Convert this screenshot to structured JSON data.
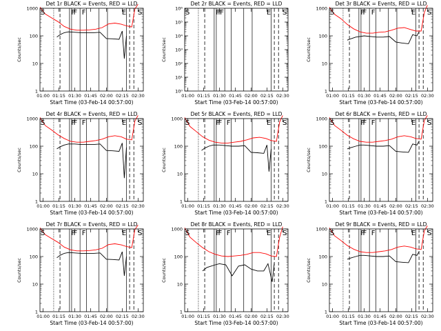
{
  "chart_data": [
    {
      "type": "line",
      "title": "Det 1r BLACK = Events, RED = LLD",
      "xlabel": "Start Time (03-Feb-14 00:57:00)",
      "ylabel": "Counts/sec",
      "y_scale": "log",
      "ylim": [
        1,
        1000
      ],
      "xlim": [
        "00:57",
        "02:35"
      ],
      "x_tick_labels": [
        "01:00",
        "01:15",
        "01:30",
        "01:45",
        "02:00",
        "02:15",
        "02:30"
      ],
      "y_tick_labels": [
        "1",
        "10",
        "100",
        "1000"
      ],
      "markers": [
        "S",
        "F",
        "F",
        "F",
        "E",
        "S"
      ],
      "series": [
        {
          "color": "#ff0000",
          "x": [
            "00:57",
            "01:02",
            "01:08",
            "01:14",
            "01:20",
            "01:26",
            "01:32",
            "01:38",
            "01:44",
            "01:50",
            "01:56",
            "02:02",
            "02:08",
            "02:14",
            "02:19",
            "02:24",
            "02:27",
            "02:30"
          ],
          "y": [
            1100,
            620,
            450,
            330,
            220,
            175,
            160,
            160,
            165,
            175,
            200,
            270,
            290,
            265,
            230,
            210,
            950,
            1400
          ]
        },
        {
          "color": "#000000",
          "x": [
            "01:13",
            "01:16",
            "01:20",
            "01:24",
            "01:30",
            "01:36",
            "01:42",
            "01:48",
            "01:54",
            "02:00",
            "02:06",
            "02:12",
            "02:15",
            "02:17",
            "02:19"
          ],
          "y": [
            90,
            110,
            130,
            140,
            135,
            130,
            130,
            130,
            135,
            80,
            78,
            75,
            150,
            15,
            100
          ]
        }
      ]
    },
    {
      "type": "line",
      "title": "Det 2r BLACK = Events, RED = LLD",
      "xlabel": "Start Time (03-Feb-14 00:57:00)",
      "ylabel": "Counts/sec",
      "y_scale": "log",
      "ylim": [
        1,
        1000000
      ],
      "xlim": [
        "00:57",
        "02:35"
      ],
      "x_tick_labels": [
        "01:00",
        "01:15",
        "01:30",
        "01:45",
        "02:00",
        "02:15",
        "02:30"
      ],
      "y_tick_labels": [
        "10⁰",
        "10¹",
        "10²",
        "10³",
        "10⁴",
        "10⁵",
        "10⁶"
      ],
      "markers": [
        "S",
        "FF",
        "F",
        "E",
        "S"
      ],
      "series": []
    },
    {
      "type": "line",
      "title": "Det 3r BLACK = Events, RED = LLD",
      "xlabel": "Start Time (03-Feb-14 00:57:00)",
      "ylabel": "Counts/sec",
      "y_scale": "log",
      "ylim": [
        1,
        1000
      ],
      "xlim": [
        "00:57",
        "02:35"
      ],
      "x_tick_labels": [
        "01:00",
        "01:15",
        "01:30",
        "01:45",
        "02:00",
        "02:15",
        "02:30"
      ],
      "y_tick_labels": [
        "1",
        "10",
        "100",
        "1000"
      ],
      "markers": [
        "S",
        "F",
        "F",
        "F",
        "E",
        "S"
      ],
      "series": [
        {
          "color": "#ff0000",
          "x": [
            "00:57",
            "01:02",
            "01:08",
            "01:14",
            "01:20",
            "01:26",
            "01:32",
            "01:38",
            "01:44",
            "01:50",
            "01:56",
            "02:02",
            "02:08",
            "02:14",
            "02:19",
            "02:24",
            "02:27",
            "02:30"
          ],
          "y": [
            1100,
            600,
            420,
            260,
            180,
            140,
            125,
            125,
            135,
            140,
            160,
            190,
            200,
            170,
            150,
            150,
            700,
            1300
          ]
        },
        {
          "color": "#000000",
          "x": [
            "01:14",
            "01:18",
            "01:22",
            "01:26",
            "01:30",
            "01:36",
            "01:42",
            "01:48",
            "01:54",
            "02:00",
            "02:06",
            "02:12",
            "02:16",
            "02:20",
            "02:22"
          ],
          "y": [
            70,
            80,
            90,
            95,
            100,
            95,
            90,
            90,
            95,
            60,
            55,
            52,
            110,
            100,
            140
          ]
        }
      ]
    },
    {
      "type": "line",
      "title": "Det 4r BLACK = Events, RED = LLD",
      "xlabel": "Start Time (03-Feb-14 00:57:00)",
      "ylabel": "Counts/sec",
      "y_scale": "log",
      "ylim": [
        1,
        1000
      ],
      "xlim": [
        "00:57",
        "02:35"
      ],
      "x_tick_labels": [
        "01:00",
        "01:15",
        "01:30",
        "01:45",
        "02:00",
        "02:15",
        "02:30"
      ],
      "y_tick_labels": [
        "1",
        "10",
        "100",
        "1000"
      ],
      "markers": [
        "S",
        "F",
        "F",
        "F",
        "E",
        "S"
      ],
      "series": [
        {
          "color": "#ff0000",
          "x": [
            "00:57",
            "01:02",
            "01:08",
            "01:14",
            "01:20",
            "01:26",
            "01:32",
            "01:38",
            "01:44",
            "01:50",
            "01:56",
            "02:02",
            "02:08",
            "02:14",
            "02:19",
            "02:24",
            "02:27",
            "02:30"
          ],
          "y": [
            1100,
            560,
            390,
            260,
            190,
            150,
            140,
            140,
            150,
            160,
            180,
            220,
            240,
            220,
            180,
            170,
            820,
            1300
          ]
        },
        {
          "color": "#000000",
          "x": [
            "01:13",
            "01:16",
            "01:20",
            "01:24",
            "01:30",
            "01:36",
            "01:42",
            "01:48",
            "01:54",
            "02:00",
            "02:06",
            "02:12",
            "02:15",
            "02:17",
            "02:19"
          ],
          "y": [
            80,
            95,
            110,
            120,
            120,
            115,
            115,
            115,
            120,
            70,
            68,
            65,
            130,
            7,
            90
          ]
        }
      ]
    },
    {
      "type": "line",
      "title": "Det 5r BLACK = Events, RED = LLD",
      "xlabel": "Start Time (03-Feb-14 00:57:00)",
      "ylabel": "Counts/sec",
      "y_scale": "log",
      "ylim": [
        1,
        1000
      ],
      "xlim": [
        "00:57",
        "02:35"
      ],
      "x_tick_labels": [
        "01:00",
        "01:15",
        "01:30",
        "01:45",
        "02:00",
        "02:15",
        "02:30"
      ],
      "y_tick_labels": [
        "1",
        "10",
        "100",
        "1000"
      ],
      "markers": [
        "S",
        "F",
        "F",
        "F",
        "E",
        "S"
      ],
      "series": [
        {
          "color": "#ff0000",
          "x": [
            "00:57",
            "01:02",
            "01:08",
            "01:14",
            "01:20",
            "01:26",
            "01:32",
            "01:38",
            "01:44",
            "01:50",
            "01:56",
            "02:02",
            "02:08",
            "02:14",
            "02:19",
            "02:24",
            "02:27",
            "02:30"
          ],
          "y": [
            1100,
            520,
            340,
            220,
            165,
            140,
            130,
            130,
            140,
            150,
            170,
            200,
            210,
            190,
            160,
            150,
            750,
            1300
          ]
        },
        {
          "color": "#000000",
          "x": [
            "01:13",
            "01:16",
            "01:20",
            "01:24",
            "01:30",
            "01:36",
            "01:42",
            "01:48",
            "01:54",
            "02:00",
            "02:06",
            "02:12",
            "02:15",
            "02:17",
            "02:19"
          ],
          "y": [
            70,
            85,
            100,
            110,
            110,
            105,
            100,
            100,
            105,
            60,
            58,
            55,
            110,
            12,
            80
          ]
        }
      ]
    },
    {
      "type": "line",
      "title": "Det 6r BLACK = Events, RED = LLD",
      "xlabel": "Start Time (03-Feb-14 00:57:00)",
      "ylabel": "Counts/sec",
      "y_scale": "log",
      "ylim": [
        1,
        1000
      ],
      "xlim": [
        "00:57",
        "02:35"
      ],
      "x_tick_labels": [
        "01:00",
        "01:15",
        "01:30",
        "01:45",
        "02:00",
        "02:15",
        "02:30"
      ],
      "y_tick_labels": [
        "1",
        "10",
        "100",
        "1000"
      ],
      "markers": [
        "S",
        "F",
        "F",
        "F",
        "E",
        "S"
      ],
      "series": [
        {
          "color": "#ff0000",
          "x": [
            "00:57",
            "01:02",
            "01:08",
            "01:14",
            "01:20",
            "01:26",
            "01:32",
            "01:38",
            "01:44",
            "01:50",
            "01:56",
            "02:02",
            "02:08",
            "02:14",
            "02:19",
            "02:24",
            "02:27",
            "02:30"
          ],
          "y": [
            1100,
            560,
            380,
            250,
            185,
            150,
            140,
            140,
            150,
            160,
            180,
            220,
            240,
            220,
            190,
            180,
            850,
            1300
          ]
        },
        {
          "color": "#000000",
          "x": [
            "01:14",
            "01:18",
            "01:22",
            "01:26",
            "01:30",
            "01:36",
            "01:42",
            "01:48",
            "01:54",
            "02:00",
            "02:06",
            "02:12",
            "02:16",
            "02:20",
            "02:22"
          ],
          "y": [
            80,
            90,
            100,
            110,
            110,
            105,
            100,
            100,
            105,
            65,
            62,
            60,
            120,
            110,
            150
          ]
        }
      ]
    },
    {
      "type": "line",
      "title": "Det 7r BLACK = Events, RED = LLD",
      "xlabel": "Start Time (03-Feb-14 00:57:00)",
      "ylabel": "Counts/sec",
      "y_scale": "log",
      "ylim": [
        1,
        1000
      ],
      "xlim": [
        "00:57",
        "02:35"
      ],
      "x_tick_labels": [
        "01:00",
        "01:15",
        "01:30",
        "01:45",
        "02:00",
        "02:15",
        "02:30"
      ],
      "y_tick_labels": [
        "1",
        "10",
        "100",
        "1000"
      ],
      "markers": [
        "S",
        "F",
        "F",
        "F",
        "E",
        "S"
      ],
      "series": [
        {
          "color": "#ff0000",
          "x": [
            "00:57",
            "01:02",
            "01:08",
            "01:14",
            "01:20",
            "01:26",
            "01:32",
            "01:38",
            "01:44",
            "01:50",
            "01:56",
            "02:02",
            "02:08",
            "02:14",
            "02:19",
            "02:24",
            "02:27",
            "02:30"
          ],
          "y": [
            1100,
            620,
            450,
            330,
            220,
            175,
            160,
            160,
            165,
            175,
            200,
            270,
            290,
            265,
            230,
            210,
            950,
            1400
          ]
        },
        {
          "color": "#000000",
          "x": [
            "01:13",
            "01:16",
            "01:20",
            "01:24",
            "01:30",
            "01:36",
            "01:42",
            "01:48",
            "01:54",
            "02:00",
            "02:06",
            "02:12",
            "02:15",
            "02:17",
            "02:19"
          ],
          "y": [
            90,
            110,
            130,
            140,
            135,
            130,
            130,
            130,
            135,
            80,
            78,
            75,
            150,
            20,
            100
          ]
        }
      ]
    },
    {
      "type": "line",
      "title": "Det 8r BLACK = Events, RED = LLD",
      "xlabel": "Start Time (03-Feb-14 00:57:00)",
      "ylabel": "Counts/sec",
      "y_scale": "log",
      "ylim": [
        1,
        1000
      ],
      "xlim": [
        "00:57",
        "02:35"
      ],
      "x_tick_labels": [
        "01:00",
        "01:15",
        "01:30",
        "01:45",
        "02:00",
        "02:15",
        "02:30"
      ],
      "y_tick_labels": [
        "1",
        "10",
        "100",
        "1000"
      ],
      "markers": [
        "S",
        "F",
        "F",
        "F",
        "E",
        "S"
      ],
      "series": [
        {
          "color": "#ff0000",
          "x": [
            "00:57",
            "01:02",
            "01:08",
            "01:14",
            "01:20",
            "01:26",
            "01:32",
            "01:38",
            "01:44",
            "01:50",
            "01:56",
            "02:02",
            "02:08",
            "02:14",
            "02:19",
            "02:24",
            "02:27",
            "02:30"
          ],
          "y": [
            1100,
            500,
            320,
            210,
            150,
            120,
            105,
            100,
            105,
            110,
            120,
            140,
            140,
            125,
            105,
            100,
            500,
            1200
          ]
        },
        {
          "color": "#000000",
          "x": [
            "01:14",
            "01:18",
            "01:22",
            "01:26",
            "01:30",
            "01:36",
            "01:42",
            "01:48",
            "01:54",
            "02:00",
            "02:06",
            "02:12",
            "02:16",
            "02:20",
            "02:22"
          ],
          "y": [
            30,
            40,
            45,
            50,
            55,
            50,
            20,
            45,
            50,
            35,
            30,
            30,
            55,
            12,
            60
          ]
        }
      ]
    },
    {
      "type": "line",
      "title": "Det 9r BLACK = Events, RED = LLD",
      "xlabel": "Start Time (03-Feb-14 00:57:00)",
      "ylabel": "Counts/sec",
      "y_scale": "log",
      "ylim": [
        1,
        1000
      ],
      "xlim": [
        "00:57",
        "02:35"
      ],
      "x_tick_labels": [
        "01:00",
        "01:15",
        "01:30",
        "01:45",
        "02:00",
        "02:15",
        "02:30"
      ],
      "y_tick_labels": [
        "1",
        "10",
        "100",
        "1000"
      ],
      "markers": [
        "S",
        "F",
        "F",
        "F",
        "E",
        "S"
      ],
      "series": [
        {
          "color": "#ff0000",
          "x": [
            "00:57",
            "01:02",
            "01:08",
            "01:14",
            "01:20",
            "01:26",
            "01:32",
            "01:38",
            "01:44",
            "01:50",
            "01:56",
            "02:02",
            "02:08",
            "02:14",
            "02:19",
            "02:24",
            "02:27",
            "02:30"
          ],
          "y": [
            1100,
            560,
            380,
            250,
            185,
            150,
            140,
            140,
            150,
            160,
            180,
            220,
            240,
            220,
            190,
            180,
            850,
            1300
          ]
        },
        {
          "color": "#000000",
          "x": [
            "01:14",
            "01:18",
            "01:22",
            "01:26",
            "01:30",
            "01:36",
            "01:42",
            "01:48",
            "01:54",
            "02:00",
            "02:06",
            "02:12",
            "02:16",
            "02:20",
            "02:22"
          ],
          "y": [
            80,
            90,
            100,
            110,
            110,
            105,
            100,
            100,
            105,
            65,
            62,
            60,
            120,
            110,
            150
          ]
        }
      ]
    }
  ],
  "event_lines": {
    "dotted": [
      "01:10"
    ],
    "dashed": [
      "01:16",
      "02:22",
      "02:26"
    ],
    "solid": [
      "01:25",
      "01:27",
      "01:35",
      "01:41",
      "01:53",
      "02:01",
      "02:19"
    ]
  },
  "colors": {
    "events": "#000000",
    "lld": "#ff0000",
    "axes": "#000000",
    "background": "#ffffff"
  }
}
